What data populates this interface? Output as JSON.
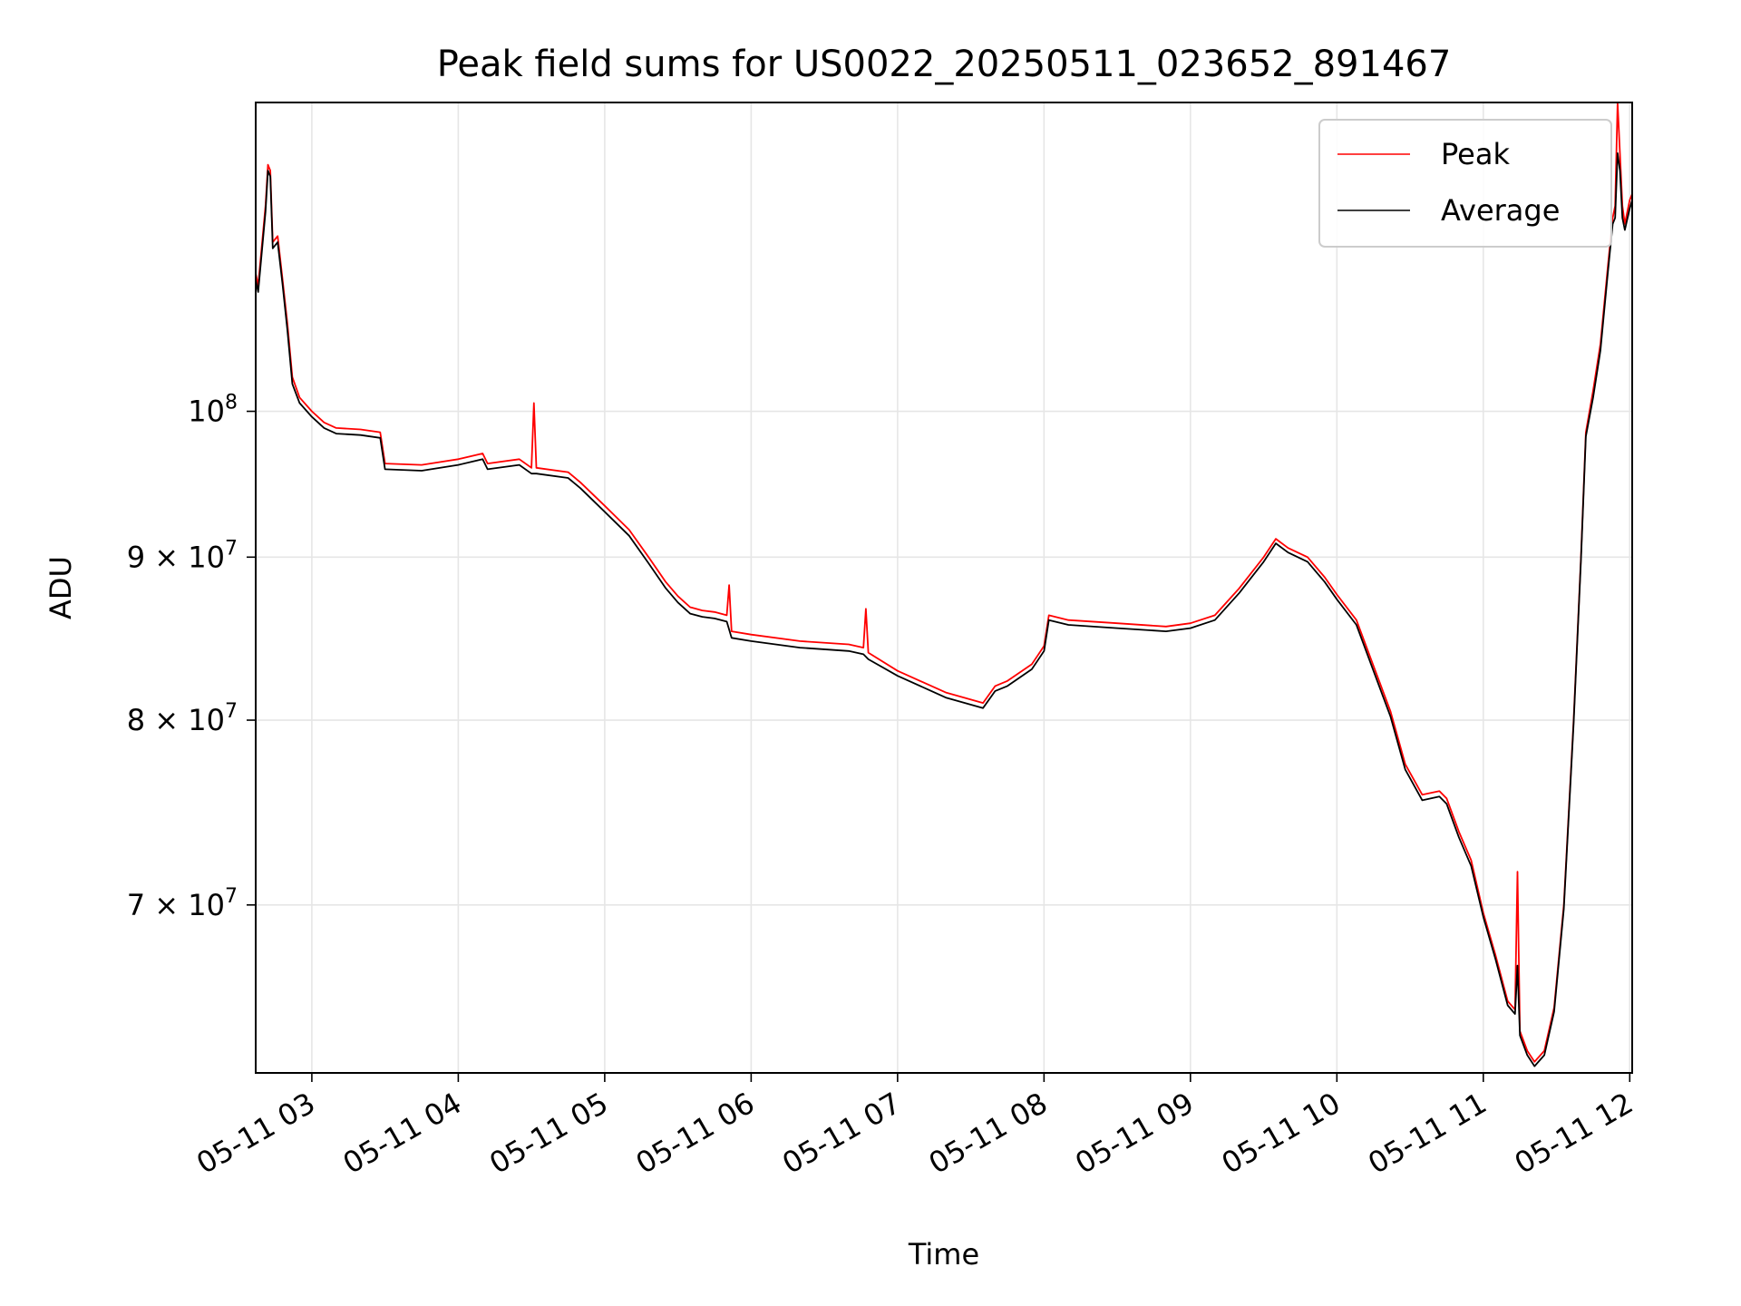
{
  "chart_data": {
    "type": "line",
    "title": "Peak field sums for US0022_20250511_023652_891467",
    "xlabel": "Time",
    "ylabel": "ADU",
    "y_scale": "log",
    "xlim": [
      "2025-05-11 02:37",
      "2025-05-11 12:01"
    ],
    "ylim": [
      62000000,
      125000000
    ],
    "grid": true,
    "legend_position": "top-right",
    "x_ticks": [
      {
        "t": "2025-05-11 03:00",
        "label": "05-11 03"
      },
      {
        "t": "2025-05-11 04:00",
        "label": "05-11 04"
      },
      {
        "t": "2025-05-11 05:00",
        "label": "05-11 05"
      },
      {
        "t": "2025-05-11 06:00",
        "label": "05-11 06"
      },
      {
        "t": "2025-05-11 07:00",
        "label": "05-11 07"
      },
      {
        "t": "2025-05-11 08:00",
        "label": "05-11 08"
      },
      {
        "t": "2025-05-11 09:00",
        "label": "05-11 09"
      },
      {
        "t": "2025-05-11 10:00",
        "label": "05-11 10"
      },
      {
        "t": "2025-05-11 11:00",
        "label": "05-11 11"
      },
      {
        "t": "2025-05-11 12:00",
        "label": "05-11 12"
      }
    ],
    "y_ticks": [
      {
        "value": 70000000,
        "mantissa": "7",
        "exponent": "7",
        "label": "7×10^7"
      },
      {
        "value": 80000000,
        "mantissa": "8",
        "exponent": "7",
        "label": "8×10^7"
      },
      {
        "value": 90000000,
        "mantissa": "9",
        "exponent": "7",
        "label": "9×10^7"
      },
      {
        "value": 100000000,
        "mantissa": "",
        "exponent": "8",
        "label": "10^8"
      }
    ],
    "series": [
      {
        "name": "Peak",
        "color": "#ff0000",
        "points": [
          [
            "2025-05-11 02:37",
            110500000
          ],
          [
            "2025-05-11 02:38",
            109500000
          ],
          [
            "2025-05-11 02:41",
            116000000
          ],
          [
            "2025-05-11 02:42",
            119500000
          ],
          [
            "2025-05-11 02:43",
            119000000
          ],
          [
            "2025-05-11 02:44",
            113000000
          ],
          [
            "2025-05-11 02:46",
            113500000
          ],
          [
            "2025-05-11 02:48",
            110000000
          ],
          [
            "2025-05-11 02:50",
            106500000
          ],
          [
            "2025-05-11 02:52",
            102500000
          ],
          [
            "2025-05-11 02:55",
            101000000
          ],
          [
            "2025-05-11 03:00",
            100000000
          ],
          [
            "2025-05-11 03:05",
            99200000
          ],
          [
            "2025-05-11 03:10",
            98800000
          ],
          [
            "2025-05-11 03:20",
            98700000
          ],
          [
            "2025-05-11 03:28",
            98500000
          ],
          [
            "2025-05-11 03:30",
            96300000
          ],
          [
            "2025-05-11 03:45",
            96200000
          ],
          [
            "2025-05-11 04:00",
            96600000
          ],
          [
            "2025-05-11 04:10",
            97000000
          ],
          [
            "2025-05-11 04:12",
            96300000
          ],
          [
            "2025-05-11 04:25",
            96600000
          ],
          [
            "2025-05-11 04:30",
            96000000
          ],
          [
            "2025-05-11 04:31",
            100600000
          ],
          [
            "2025-05-11 04:32",
            96000000
          ],
          [
            "2025-05-11 04:45",
            95700000
          ],
          [
            "2025-05-11 04:50",
            95000000
          ],
          [
            "2025-05-11 05:00",
            93400000
          ],
          [
            "2025-05-11 05:10",
            91800000
          ],
          [
            "2025-05-11 05:18",
            90000000
          ],
          [
            "2025-05-11 05:25",
            88400000
          ],
          [
            "2025-05-11 05:30",
            87500000
          ],
          [
            "2025-05-11 05:35",
            86800000
          ],
          [
            "2025-05-11 05:40",
            86600000
          ],
          [
            "2025-05-11 05:45",
            86500000
          ],
          [
            "2025-05-11 05:50",
            86300000
          ],
          [
            "2025-05-11 05:51",
            88200000
          ],
          [
            "2025-05-11 05:52",
            85300000
          ],
          [
            "2025-05-11 06:00",
            85100000
          ],
          [
            "2025-05-11 06:20",
            84700000
          ],
          [
            "2025-05-11 06:40",
            84500000
          ],
          [
            "2025-05-11 06:46",
            84300000
          ],
          [
            "2025-05-11 06:47",
            86700000
          ],
          [
            "2025-05-11 06:48",
            84000000
          ],
          [
            "2025-05-11 07:00",
            82900000
          ],
          [
            "2025-05-11 07:20",
            81600000
          ],
          [
            "2025-05-11 07:35",
            81000000
          ],
          [
            "2025-05-11 07:40",
            82000000
          ],
          [
            "2025-05-11 07:45",
            82300000
          ],
          [
            "2025-05-11 07:55",
            83300000
          ],
          [
            "2025-05-11 08:00",
            84400000
          ],
          [
            "2025-05-11 08:02",
            86300000
          ],
          [
            "2025-05-11 08:10",
            86000000
          ],
          [
            "2025-05-11 08:30",
            85800000
          ],
          [
            "2025-05-11 08:50",
            85600000
          ],
          [
            "2025-05-11 09:00",
            85800000
          ],
          [
            "2025-05-11 09:10",
            86300000
          ],
          [
            "2025-05-11 09:20",
            88000000
          ],
          [
            "2025-05-11 09:30",
            90000000
          ],
          [
            "2025-05-11 09:35",
            91200000
          ],
          [
            "2025-05-11 09:40",
            90600000
          ],
          [
            "2025-05-11 09:48",
            90000000
          ],
          [
            "2025-05-11 09:55",
            88700000
          ],
          [
            "2025-05-11 10:00",
            87600000
          ],
          [
            "2025-05-11 10:08",
            86000000
          ],
          [
            "2025-05-11 10:15",
            83200000
          ],
          [
            "2025-05-11 10:22",
            80500000
          ],
          [
            "2025-05-11 10:28",
            77500000
          ],
          [
            "2025-05-11 10:35",
            75800000
          ],
          [
            "2025-05-11 10:42",
            76000000
          ],
          [
            "2025-05-11 10:45",
            75600000
          ],
          [
            "2025-05-11 10:50",
            73800000
          ],
          [
            "2025-05-11 10:55",
            72300000
          ],
          [
            "2025-05-11 11:00",
            69600000
          ],
          [
            "2025-05-11 11:05",
            67500000
          ],
          [
            "2025-05-11 11:10",
            65300000
          ],
          [
            "2025-05-11 11:13",
            64900000
          ],
          [
            "2025-05-11 11:14",
            71700000
          ],
          [
            "2025-05-11 11:15",
            63900000
          ],
          [
            "2025-05-11 11:18",
            63000000
          ],
          [
            "2025-05-11 11:21",
            62500000
          ],
          [
            "2025-05-11 11:25",
            63000000
          ],
          [
            "2025-05-11 11:29",
            65000000
          ],
          [
            "2025-05-11 11:33",
            70000000
          ],
          [
            "2025-05-11 11:37",
            80000000
          ],
          [
            "2025-05-11 11:40",
            90000000
          ],
          [
            "2025-05-11 11:42",
            98500000
          ],
          [
            "2025-05-11 11:45",
            101500000
          ],
          [
            "2025-05-11 11:48",
            105000000
          ],
          [
            "2025-05-11 11:51",
            111000000
          ],
          [
            "2025-05-11 11:53",
            115000000
          ],
          [
            "2025-05-11 11:54",
            116000000
          ],
          [
            "2025-05-11 11:55",
            125000000
          ],
          [
            "2025-05-11 11:56",
            120500000
          ],
          [
            "2025-05-11 11:57",
            116000000
          ],
          [
            "2025-05-11 11:58",
            114500000
          ],
          [
            "2025-05-11 12:00",
            116500000
          ],
          [
            "2025-05-11 12:01",
            117000000
          ]
        ]
      },
      {
        "name": "Average",
        "color": "#000000",
        "points": [
          [
            "2025-05-11 02:37",
            110000000
          ],
          [
            "2025-05-11 02:38",
            109000000
          ],
          [
            "2025-05-11 02:41",
            115500000
          ],
          [
            "2025-05-11 02:42",
            119000000
          ],
          [
            "2025-05-11 02:43",
            118500000
          ],
          [
            "2025-05-11 02:44",
            112500000
          ],
          [
            "2025-05-11 02:46",
            113000000
          ],
          [
            "2025-05-11 02:48",
            109600000
          ],
          [
            "2025-05-11 02:50",
            106000000
          ],
          [
            "2025-05-11 02:52",
            102000000
          ],
          [
            "2025-05-11 02:55",
            100600000
          ],
          [
            "2025-05-11 03:00",
            99600000
          ],
          [
            "2025-05-11 03:05",
            98800000
          ],
          [
            "2025-05-11 03:10",
            98400000
          ],
          [
            "2025-05-11 03:20",
            98300000
          ],
          [
            "2025-05-11 03:28",
            98100000
          ],
          [
            "2025-05-11 03:30",
            95900000
          ],
          [
            "2025-05-11 03:45",
            95800000
          ],
          [
            "2025-05-11 04:00",
            96200000
          ],
          [
            "2025-05-11 04:10",
            96600000
          ],
          [
            "2025-05-11 04:12",
            95900000
          ],
          [
            "2025-05-11 04:25",
            96200000
          ],
          [
            "2025-05-11 04:30",
            95600000
          ],
          [
            "2025-05-11 04:32",
            95600000
          ],
          [
            "2025-05-11 04:45",
            95300000
          ],
          [
            "2025-05-11 04:50",
            94600000
          ],
          [
            "2025-05-11 05:00",
            93000000
          ],
          [
            "2025-05-11 05:10",
            91400000
          ],
          [
            "2025-05-11 05:18",
            89600000
          ],
          [
            "2025-05-11 05:25",
            88000000
          ],
          [
            "2025-05-11 05:30",
            87100000
          ],
          [
            "2025-05-11 05:35",
            86400000
          ],
          [
            "2025-05-11 05:40",
            86200000
          ],
          [
            "2025-05-11 05:45",
            86100000
          ],
          [
            "2025-05-11 05:50",
            85900000
          ],
          [
            "2025-05-11 05:52",
            84900000
          ],
          [
            "2025-05-11 06:00",
            84700000
          ],
          [
            "2025-05-11 06:20",
            84300000
          ],
          [
            "2025-05-11 06:40",
            84100000
          ],
          [
            "2025-05-11 06:46",
            83900000
          ],
          [
            "2025-05-11 06:48",
            83600000
          ],
          [
            "2025-05-11 07:00",
            82600000
          ],
          [
            "2025-05-11 07:20",
            81300000
          ],
          [
            "2025-05-11 07:35",
            80700000
          ],
          [
            "2025-05-11 07:40",
            81700000
          ],
          [
            "2025-05-11 07:45",
            82000000
          ],
          [
            "2025-05-11 07:55",
            83000000
          ],
          [
            "2025-05-11 08:00",
            84100000
          ],
          [
            "2025-05-11 08:02",
            86000000
          ],
          [
            "2025-05-11 08:10",
            85700000
          ],
          [
            "2025-05-11 08:30",
            85500000
          ],
          [
            "2025-05-11 08:50",
            85300000
          ],
          [
            "2025-05-11 09:00",
            85500000
          ],
          [
            "2025-05-11 09:10",
            86000000
          ],
          [
            "2025-05-11 09:20",
            87700000
          ],
          [
            "2025-05-11 09:30",
            89700000
          ],
          [
            "2025-05-11 09:35",
            90900000
          ],
          [
            "2025-05-11 09:40",
            90300000
          ],
          [
            "2025-05-11 09:48",
            89700000
          ],
          [
            "2025-05-11 09:55",
            88400000
          ],
          [
            "2025-05-11 10:00",
            87300000
          ],
          [
            "2025-05-11 10:08",
            85700000
          ],
          [
            "2025-05-11 10:15",
            82900000
          ],
          [
            "2025-05-11 10:22",
            80200000
          ],
          [
            "2025-05-11 10:28",
            77200000
          ],
          [
            "2025-05-11 10:35",
            75500000
          ],
          [
            "2025-05-11 10:42",
            75700000
          ],
          [
            "2025-05-11 10:45",
            75300000
          ],
          [
            "2025-05-11 10:50",
            73500000
          ],
          [
            "2025-05-11 10:55",
            72000000
          ],
          [
            "2025-05-11 11:00",
            69400000
          ],
          [
            "2025-05-11 11:05",
            67300000
          ],
          [
            "2025-05-11 11:10",
            65100000
          ],
          [
            "2025-05-11 11:13",
            64700000
          ],
          [
            "2025-05-11 11:14",
            67000000
          ],
          [
            "2025-05-11 11:15",
            63700000
          ],
          [
            "2025-05-11 11:18",
            62800000
          ],
          [
            "2025-05-11 11:21",
            62300000
          ],
          [
            "2025-05-11 11:25",
            62800000
          ],
          [
            "2025-05-11 11:29",
            64800000
          ],
          [
            "2025-05-11 11:33",
            69800000
          ],
          [
            "2025-05-11 11:37",
            79800000
          ],
          [
            "2025-05-11 11:40",
            89800000
          ],
          [
            "2025-05-11 11:42",
            98200000
          ],
          [
            "2025-05-11 11:45",
            101000000
          ],
          [
            "2025-05-11 11:48",
            104500000
          ],
          [
            "2025-05-11 11:51",
            110500000
          ],
          [
            "2025-05-11 11:53",
            114500000
          ],
          [
            "2025-05-11 11:54",
            115000000
          ],
          [
            "2025-05-11 11:55",
            120500000
          ],
          [
            "2025-05-11 11:56",
            119000000
          ],
          [
            "2025-05-11 11:57",
            115000000
          ],
          [
            "2025-05-11 11:58",
            114000000
          ],
          [
            "2025-05-11 12:00",
            115800000
          ],
          [
            "2025-05-11 12:01",
            116500000
          ]
        ]
      }
    ]
  }
}
